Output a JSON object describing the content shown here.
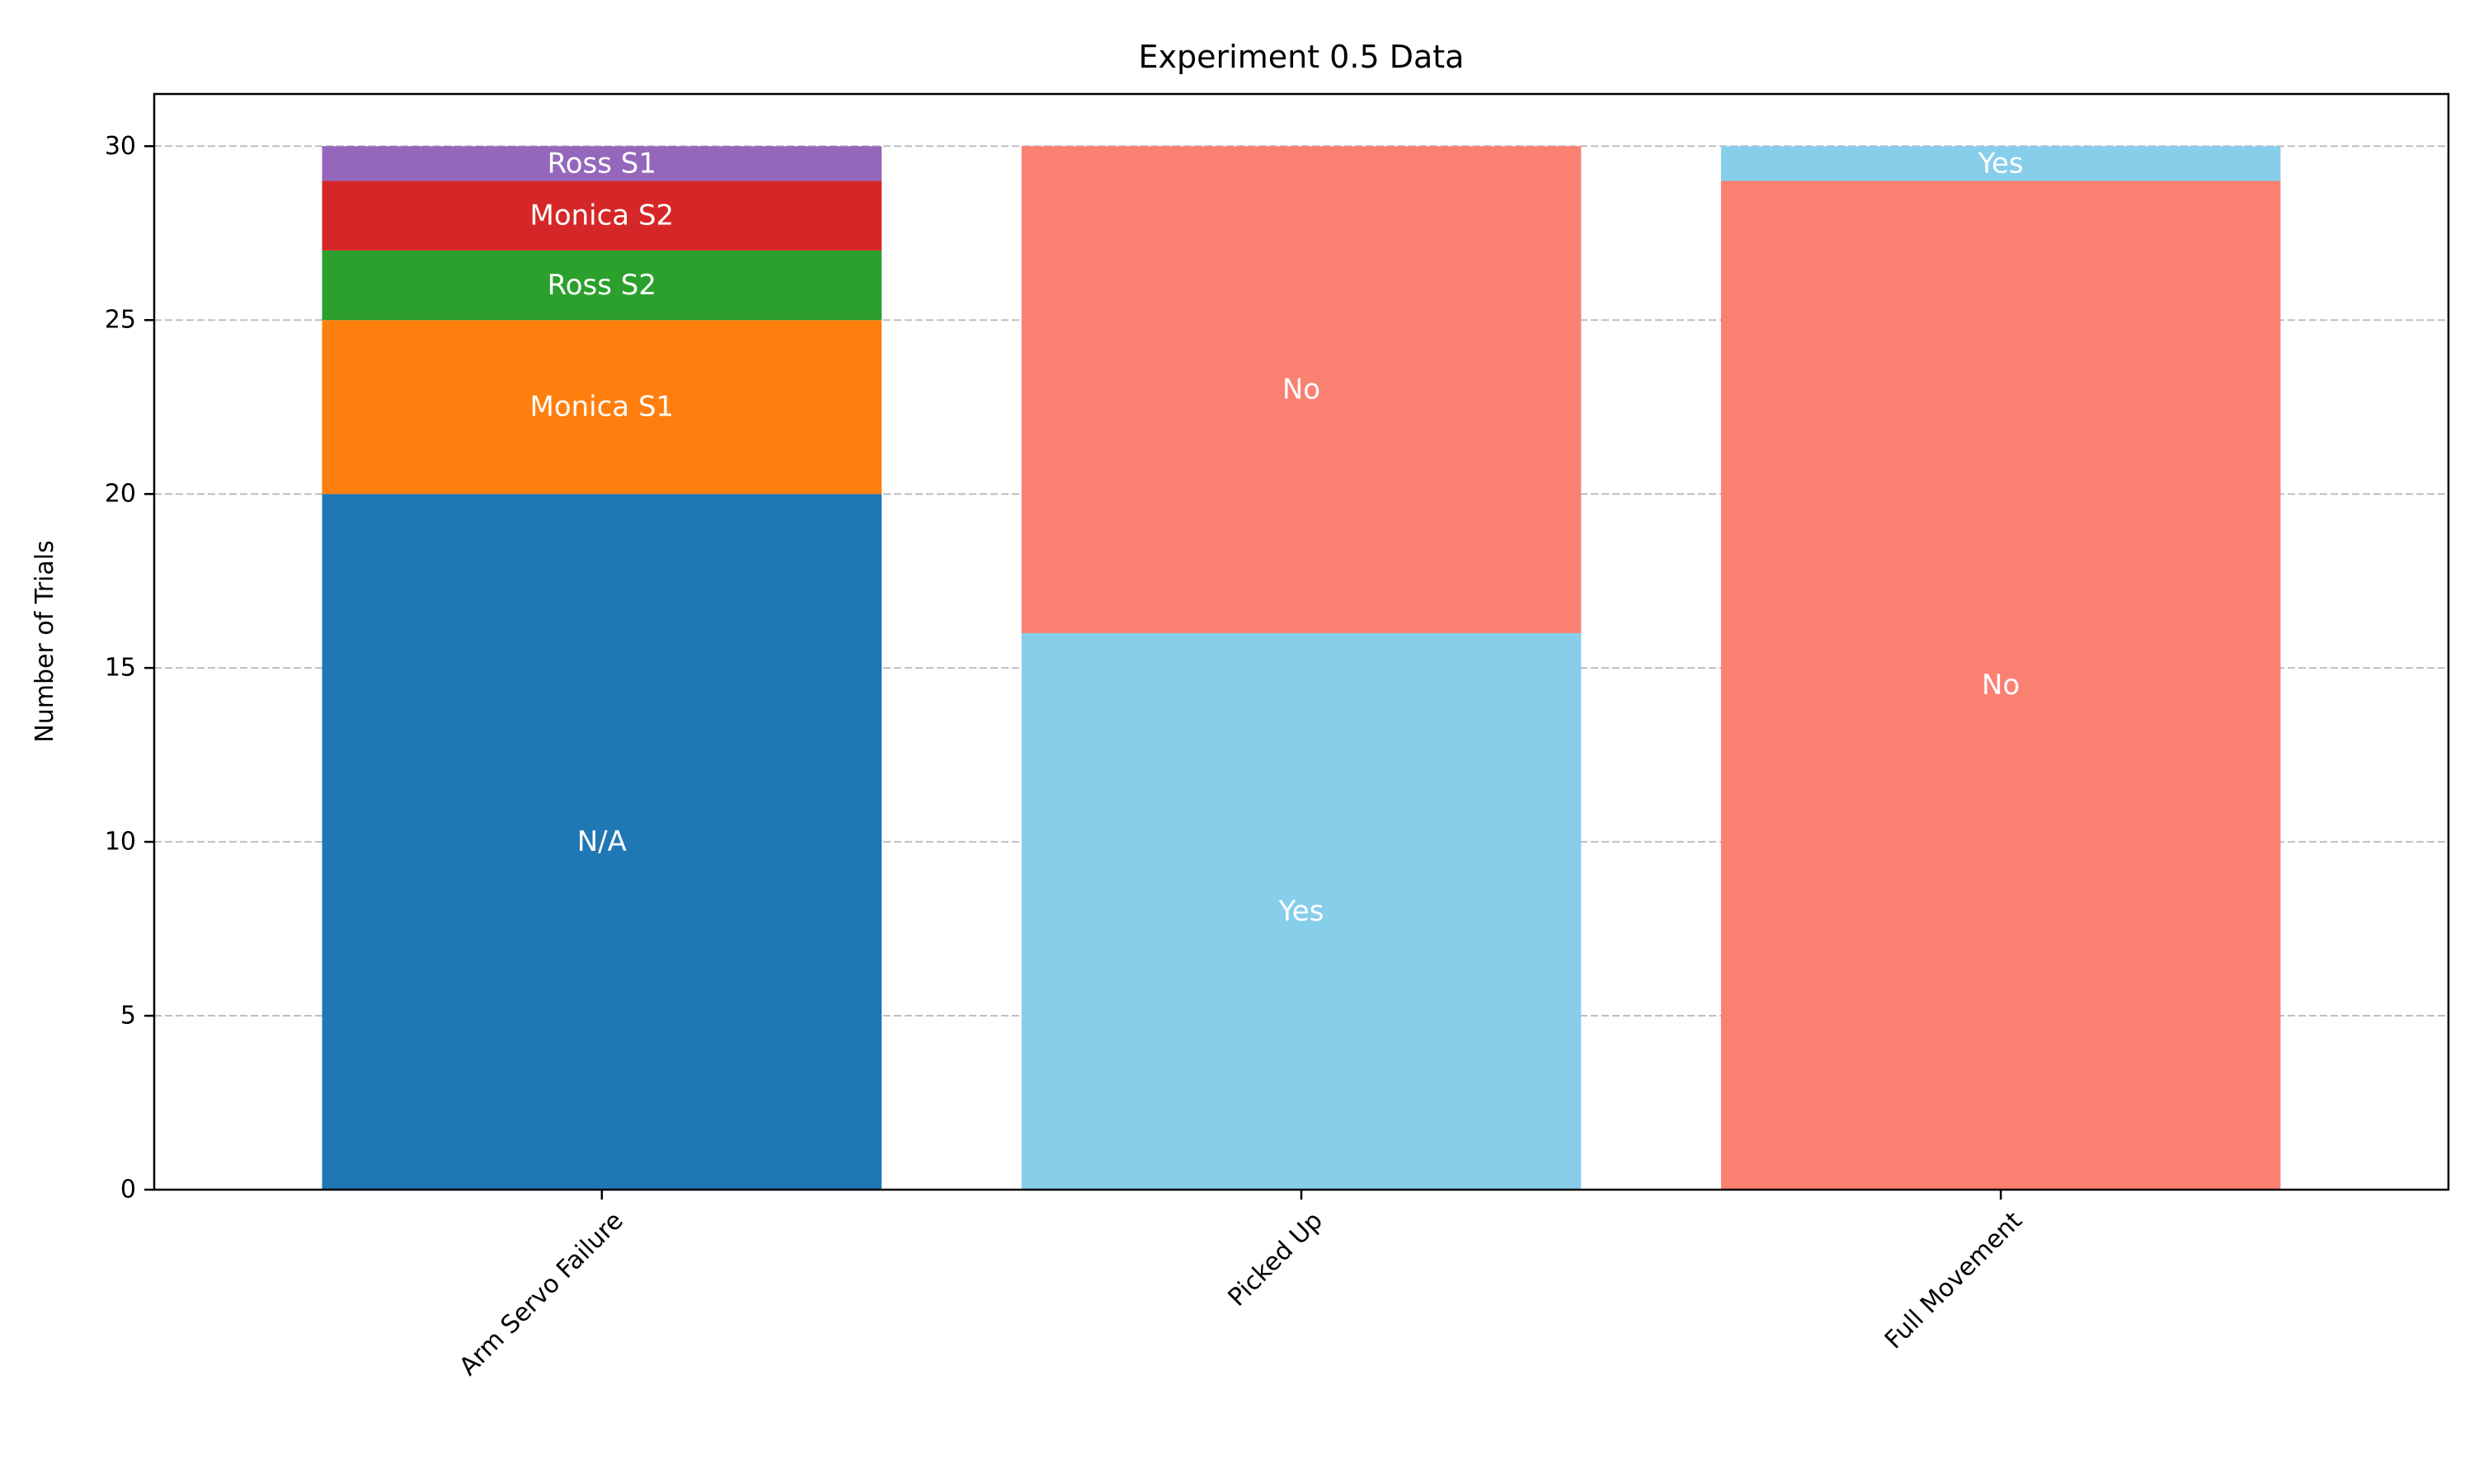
{
  "chart_data": {
    "type": "bar",
    "stacked": true,
    "title": "Experiment 0.5 Data",
    "xlabel": "",
    "ylabel": "Number of Trials",
    "ylim": [
      0,
      31.5
    ],
    "yticks": [
      0,
      5,
      10,
      15,
      20,
      25,
      30
    ],
    "grid": "y-dashed",
    "categories": [
      "Arm Servo Failure",
      "Picked Up",
      "Full Movement"
    ],
    "stacks": [
      {
        "category": "Arm Servo Failure",
        "segments": [
          {
            "label": "N/A",
            "value": 20,
            "color": "#1f77b4"
          },
          {
            "label": "Monica S1",
            "value": 5,
            "color": "#ff7f0e"
          },
          {
            "label": "Ross S2",
            "value": 2,
            "color": "#2ca02c"
          },
          {
            "label": "Monica S2",
            "value": 2,
            "color": "#d62728"
          },
          {
            "label": "Ross S1",
            "value": 1,
            "color": "#9467bd"
          }
        ]
      },
      {
        "category": "Picked Up",
        "segments": [
          {
            "label": "Yes",
            "value": 16,
            "color": "#87ceeb"
          },
          {
            "label": "No",
            "value": 14,
            "color": "#fa8072"
          }
        ]
      },
      {
        "category": "Full Movement",
        "segments": [
          {
            "label": "No",
            "value": 29,
            "color": "#fa8072"
          },
          {
            "label": "Yes",
            "value": 1,
            "color": "#87ceeb"
          }
        ]
      }
    ]
  }
}
